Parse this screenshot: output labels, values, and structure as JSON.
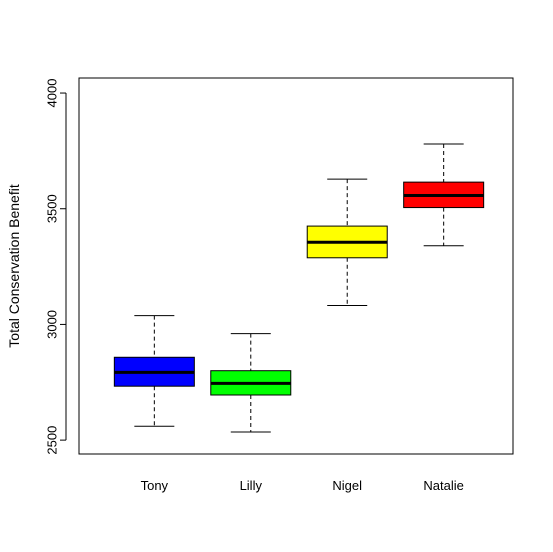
{
  "chart_data": {
    "type": "boxplot",
    "title": "",
    "xlabel": "",
    "ylabel": "Total Conservation Benefit",
    "ylim": [
      2440,
      4065
    ],
    "yticks": [
      2500,
      3000,
      3500,
      4000
    ],
    "grid": false,
    "legend": "none",
    "categories": [
      "Tony",
      "Lilly",
      "Nigel",
      "Natalie"
    ],
    "boxes": [
      {
        "name": "Tony",
        "min": 2560,
        "q1": 2733,
        "median": 2793,
        "q3": 2858,
        "max": 3038,
        "color": "#0000ff"
      },
      {
        "name": "Lilly",
        "min": 2535,
        "q1": 2695,
        "median": 2745,
        "q3": 2800,
        "max": 2960,
        "color": "#00ff00"
      },
      {
        "name": "Nigel",
        "min": 3082,
        "q1": 3288,
        "median": 3355,
        "q3": 3425,
        "max": 3628,
        "color": "#ffff00"
      },
      {
        "name": "Natalie",
        "min": 3340,
        "q1": 3505,
        "median": 3557,
        "q3": 3615,
        "max": 3780,
        "color": "#ff0000"
      }
    ]
  }
}
